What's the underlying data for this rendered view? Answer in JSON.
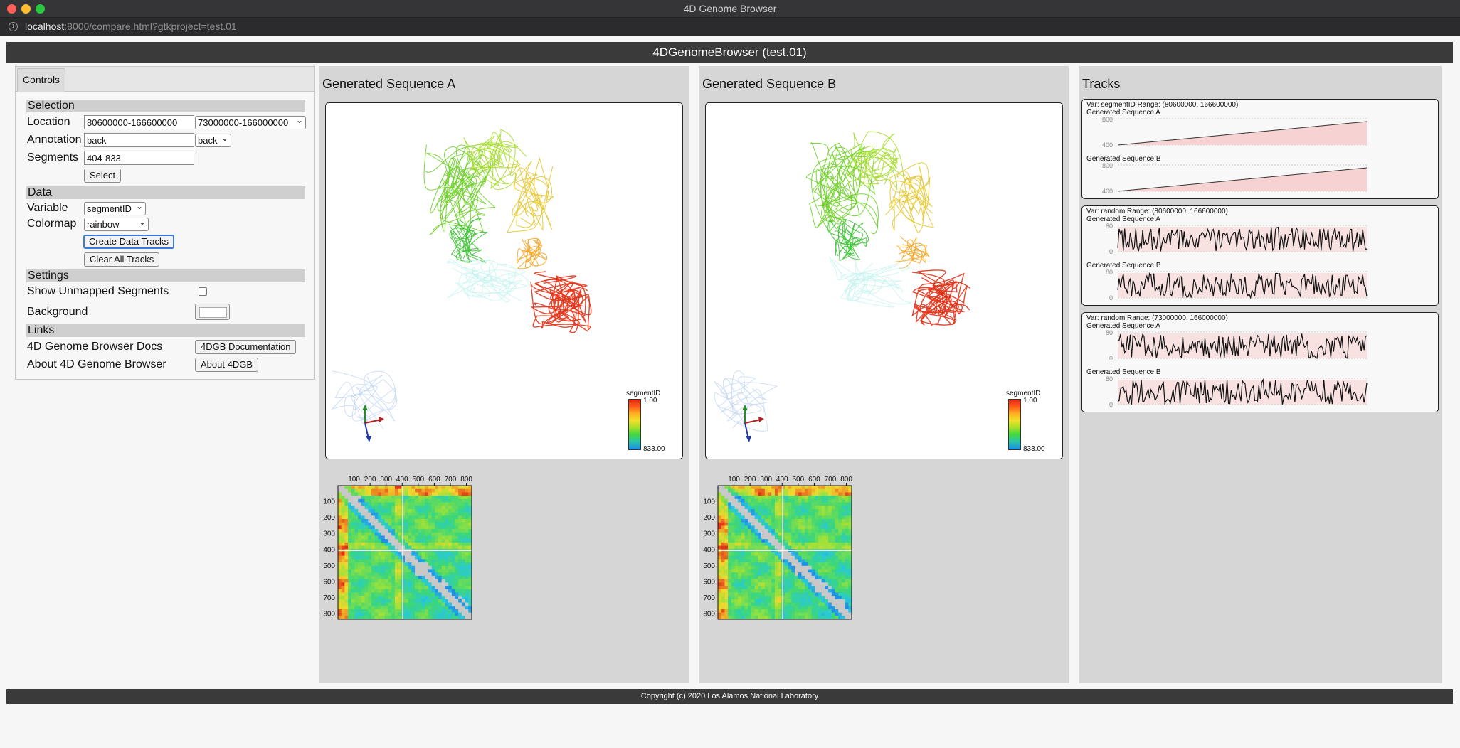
{
  "window": {
    "title": "4D Genome Browser"
  },
  "url": {
    "host": "localhost",
    "rest": ":8000/compare.html?gtkproject=test.01"
  },
  "app": {
    "title": "4DGenomeBrowser (test.01)",
    "copyright": "Copyright (c) 2020 Los Alamos National Laboratory"
  },
  "controls": {
    "tab": "Controls",
    "selection": {
      "header": "Selection",
      "location_label": "Location",
      "location_value": "80600000-166600000",
      "location_select": "73000000-166000000",
      "annotation_label": "Annotation",
      "annotation_value": "back",
      "annotation_select": "back",
      "segments_label": "Segments",
      "segments_value": "404-833",
      "select_button": "Select"
    },
    "data": {
      "header": "Data",
      "variable_label": "Variable",
      "variable_value": "segmentID",
      "colormap_label": "Colormap",
      "colormap_value": "rainbow",
      "create_button": "Create Data Tracks",
      "clear_button": "Clear All Tracks"
    },
    "settings": {
      "header": "Settings",
      "unmapped_label": "Show Unmapped Segments",
      "background_label": "Background"
    },
    "links": {
      "header": "Links",
      "docs_label": "4D Genome Browser Docs",
      "docs_button": "4DGB Documentation",
      "about_label": "About 4D Genome Browser",
      "about_button": "About 4DGB"
    }
  },
  "viewers": [
    {
      "title": "Generated Sequence A",
      "legend": {
        "title": "segmentID",
        "max": "1.00",
        "min": "833.00"
      },
      "heatmap_ticks": [
        "100",
        "200",
        "300",
        "400",
        "500",
        "600",
        "700",
        "800"
      ]
    },
    {
      "title": "Generated Sequence B",
      "legend": {
        "title": "segmentID",
        "max": "1.00",
        "min": "833.00"
      },
      "heatmap_ticks": [
        "100",
        "200",
        "300",
        "400",
        "500",
        "600",
        "700",
        "800"
      ]
    }
  ],
  "tracks": {
    "title": "Tracks",
    "items": [
      {
        "var": "Var: segmentID Range: (80600000, 166600000)",
        "seq_a": "Generated Sequence A",
        "seq_b": "Generated Sequence B",
        "ticks": [
          "800",
          "400"
        ]
      },
      {
        "var": "Var: random Range: (80600000, 166600000)",
        "seq_a": "Generated Sequence A",
        "seq_b": "Generated Sequence B",
        "ticks": [
          "80",
          "0"
        ]
      },
      {
        "var": "Var: random Range: (73000000, 166000000)",
        "seq_a": "Generated Sequence A",
        "seq_b": "Generated Sequence B",
        "ticks": [
          "80",
          "0"
        ]
      }
    ]
  },
  "colors": {
    "header_bg": "#3a3a3a",
    "panel_bg": "#d6d6d6",
    "track_fill": "#f6d2d2",
    "focus_ring": "#3b7ddd"
  }
}
